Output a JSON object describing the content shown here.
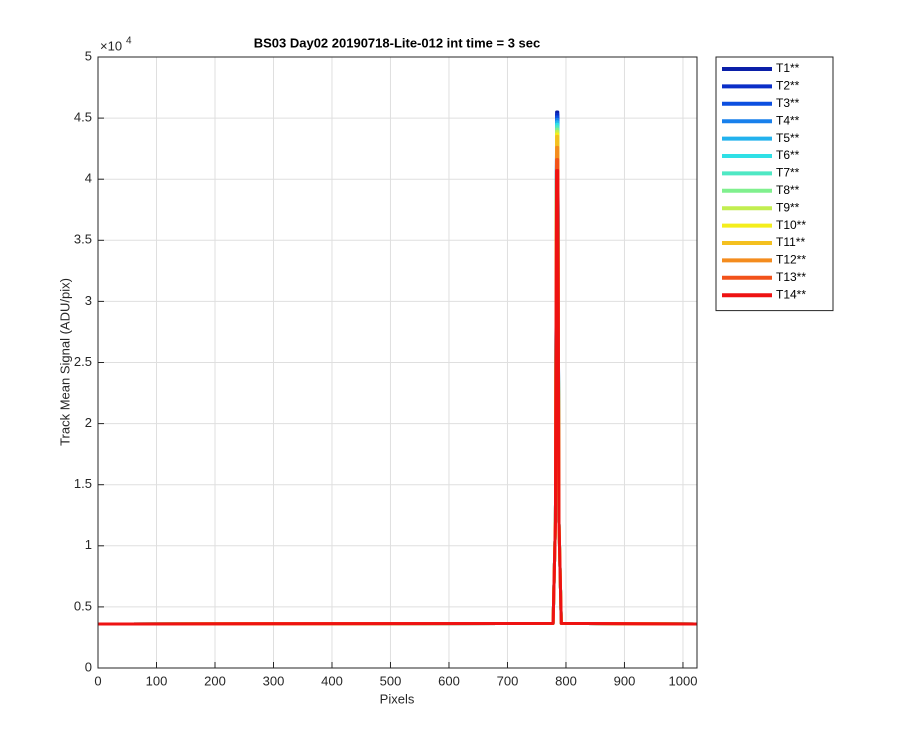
{
  "chart_data": {
    "type": "line",
    "title": "BS03 Day02 20190718-Lite-012 int time = 3 sec",
    "x_label": "Pixels",
    "y_label": "Track Mean Signal (ADU/pix)",
    "y_multiplier": "×10",
    "y_multiplier_exp": "4",
    "x": [
      0,
      778,
      782,
      784,
      786,
      788,
      792,
      1024
    ],
    "series": [
      {
        "name": "T1**",
        "color": "#0a1fa8",
        "values": [
          3600,
          3650,
          12000,
          45500,
          45500,
          12000,
          3650,
          3600
        ]
      },
      {
        "name": "T2**",
        "color": "#0a2ec8",
        "values": [
          3600,
          3650,
          12000,
          45300,
          45300,
          12000,
          3650,
          3600
        ]
      },
      {
        "name": "T3**",
        "color": "#0c4fe0",
        "values": [
          3600,
          3650,
          12000,
          45100,
          45100,
          12000,
          3650,
          3600
        ]
      },
      {
        "name": "T4**",
        "color": "#1880ec",
        "values": [
          3600,
          3650,
          12000,
          44900,
          44900,
          12000,
          3650,
          3600
        ]
      },
      {
        "name": "T5**",
        "color": "#22b2ee",
        "values": [
          3600,
          3650,
          12000,
          44700,
          44700,
          12000,
          3650,
          3600
        ]
      },
      {
        "name": "T6**",
        "color": "#2fe0e6",
        "values": [
          3600,
          3650,
          12000,
          44500,
          44500,
          12000,
          3650,
          3600
        ]
      },
      {
        "name": "T7**",
        "color": "#4fe8c4",
        "values": [
          3600,
          3650,
          12000,
          44300,
          44300,
          12000,
          3650,
          3600
        ]
      },
      {
        "name": "T8**",
        "color": "#80f08e",
        "values": [
          3600,
          3650,
          12000,
          44100,
          44100,
          12000,
          3650,
          3600
        ]
      },
      {
        "name": "T9**",
        "color": "#c2ee50",
        "values": [
          3600,
          3650,
          12000,
          43900,
          43900,
          12000,
          3650,
          3600
        ]
      },
      {
        "name": "T10**",
        "color": "#f4ee1c",
        "values": [
          3600,
          3650,
          12000,
          43700,
          43700,
          12000,
          3650,
          3600
        ]
      },
      {
        "name": "T11**",
        "color": "#f4c020",
        "values": [
          3600,
          3650,
          12000,
          43500,
          43500,
          12000,
          3650,
          3600
        ]
      },
      {
        "name": "T12**",
        "color": "#f48c1e",
        "values": [
          3600,
          3650,
          12000,
          42600,
          42600,
          12000,
          3650,
          3600
        ]
      },
      {
        "name": "T13**",
        "color": "#f2521a",
        "values": [
          3600,
          3650,
          12000,
          41600,
          41600,
          12000,
          3650,
          3600
        ]
      },
      {
        "name": "T14**",
        "color": "#ee1212",
        "values": [
          3600,
          3650,
          12000,
          40700,
          40700,
          12000,
          3650,
          3600
        ]
      }
    ],
    "xlim": [
      0,
      1024
    ],
    "xticks": [
      0,
      100,
      200,
      300,
      400,
      500,
      600,
      700,
      800,
      900,
      1000
    ],
    "ylim": [
      0,
      50000
    ],
    "yticks": [
      0,
      {
        "value": 5000,
        "label": "0.5"
      },
      {
        "value": 10000,
        "label": "1"
      },
      {
        "value": 15000,
        "label": "1.5"
      },
      {
        "value": 20000,
        "label": "2"
      },
      {
        "value": 25000,
        "label": "2.5"
      },
      {
        "value": 30000,
        "label": "3"
      },
      {
        "value": 35000,
        "label": "3.5"
      },
      {
        "value": 40000,
        "label": "4"
      },
      {
        "value": 45000,
        "label": "4.5"
      },
      {
        "value": 50000,
        "label": "5"
      }
    ],
    "grid": true,
    "legend": "outside-top-right"
  }
}
